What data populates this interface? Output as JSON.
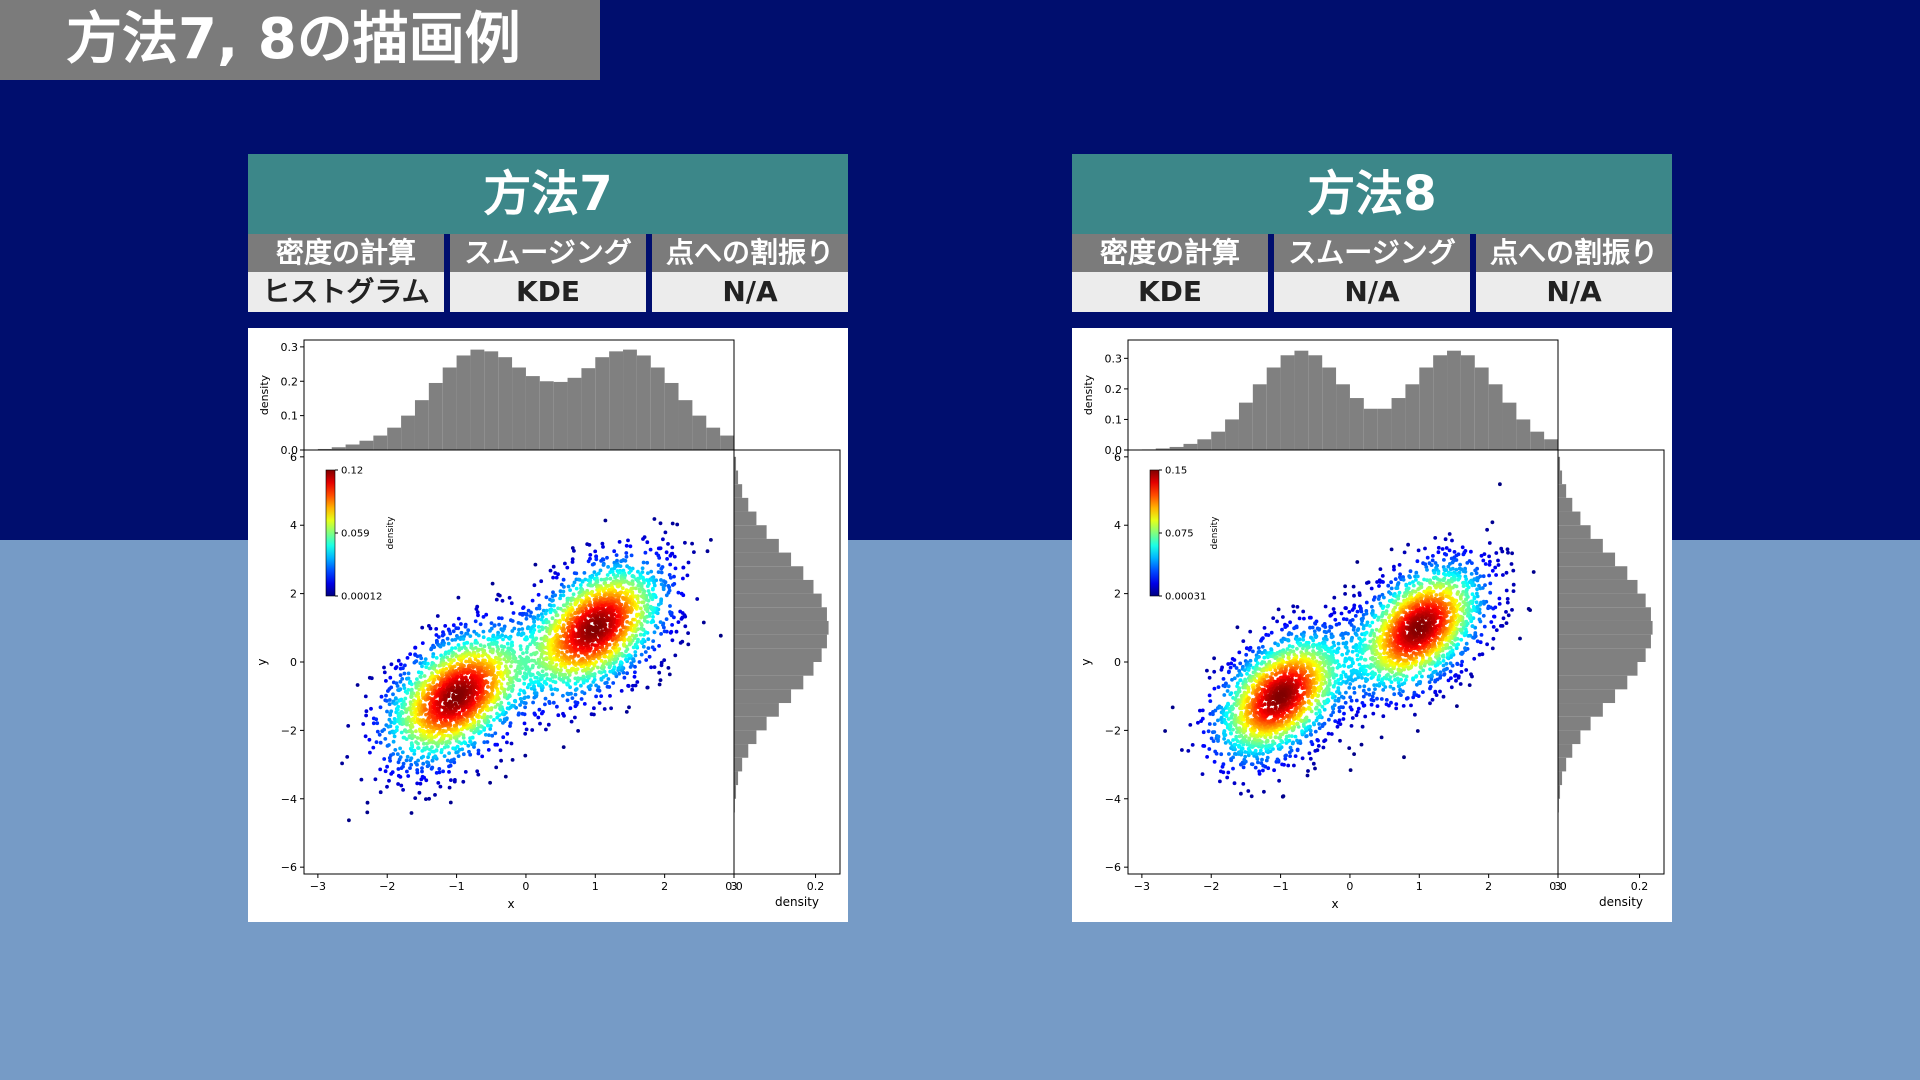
{
  "page_title": "方法7, 8の描画例",
  "colors": {
    "background_top": "#000e6e",
    "background_bottom": "#769bc6",
    "panel_header": "#3c8789",
    "category_cell": "#7b7b7b",
    "value_cell": "#ececec",
    "histogram": "#808080"
  },
  "panels": [
    {
      "title": "方法7",
      "categories": [
        "密度の計算",
        "スムージング",
        "点への割振り"
      ],
      "values": [
        "ヒストグラム",
        "KDE",
        "N/A"
      ],
      "chart_data": {
        "type": "scatter",
        "title": "",
        "xlabel": "x",
        "ylabel": "y",
        "xlim": [
          -3.2,
          3.0
        ],
        "ylim": [
          -6.2,
          6.2
        ],
        "x_ticks": [
          "−3",
          "−2",
          "−1",
          "0",
          "1",
          "2",
          "3"
        ],
        "y_ticks": [
          "−6",
          "−4",
          "−2",
          "0",
          "2",
          "4",
          "6"
        ],
        "colorbar": {
          "label": "density",
          "max": "0.12",
          "mid": "0.059",
          "min": "0.00012",
          "colormap": "jet"
        },
        "clusters": [
          {
            "center": [
              -1,
              -1
            ],
            "sd": [
              0.55,
              1.05
            ],
            "rho": 0.45
          },
          {
            "center": [
              1,
              1
            ],
            "sd": [
              0.55,
              1.05
            ],
            "rho": 0.45
          }
        ],
        "marginal_x": {
          "ylabel": "density",
          "y_ticks": [
            "0.0",
            "0.1",
            "0.2",
            "0.3"
          ],
          "ylim": [
            0,
            0.32
          ],
          "bin_start": -3.0,
          "bin_width": 0.2,
          "values": [
            0.003,
            0.008,
            0.016,
            0.027,
            0.042,
            0.065,
            0.1,
            0.145,
            0.195,
            0.24,
            0.275,
            0.292,
            0.287,
            0.27,
            0.24,
            0.215,
            0.2,
            0.198,
            0.21,
            0.238,
            0.27,
            0.287,
            0.292,
            0.275,
            0.24,
            0.195,
            0.145,
            0.1,
            0.065,
            0.042
          ]
        },
        "marginal_y": {
          "xlabel": "density",
          "x_ticks": [
            "0.0",
            "0.2"
          ],
          "xlim": [
            0,
            0.26
          ],
          "bin_start": -6.0,
          "bin_width": 0.4,
          "values": [
            0,
            0,
            0,
            0,
            0.002,
            0.005,
            0.01,
            0.02,
            0.035,
            0.055,
            0.08,
            0.11,
            0.14,
            0.17,
            0.195,
            0.215,
            0.228,
            0.232,
            0.228,
            0.215,
            0.195,
            0.17,
            0.14,
            0.11,
            0.08,
            0.055,
            0.035,
            0.02,
            0.01,
            0.005,
            0
          ]
        }
      }
    },
    {
      "title": "方法8",
      "categories": [
        "密度の計算",
        "スムージング",
        "点への割振り"
      ],
      "values": [
        "KDE",
        "N/A",
        "N/A"
      ],
      "chart_data": {
        "type": "scatter",
        "title": "",
        "xlabel": "x",
        "ylabel": "y",
        "xlim": [
          -3.2,
          3.0
        ],
        "ylim": [
          -6.2,
          6.2
        ],
        "x_ticks": [
          "−3",
          "−2",
          "−1",
          "0",
          "1",
          "2",
          "3"
        ],
        "y_ticks": [
          "−6",
          "−4",
          "−2",
          "0",
          "2",
          "4",
          "6"
        ],
        "colorbar": {
          "label": "density",
          "max": "0.15",
          "mid": "0.075",
          "min": "0.00031",
          "colormap": "jet"
        },
        "clusters": [
          {
            "center": [
              -1,
              -1
            ],
            "sd": [
              0.5,
              1.0
            ],
            "rho": 0.45
          },
          {
            "center": [
              1,
              1
            ],
            "sd": [
              0.5,
              1.0
            ],
            "rho": 0.45
          }
        ],
        "marginal_x": {
          "ylabel": "density",
          "y_ticks": [
            "0.0",
            "0.1",
            "0.2",
            "0.3"
          ],
          "ylim": [
            0,
            0.36
          ],
          "bin_start": -3.0,
          "bin_width": 0.2,
          "values": [
            0.002,
            0.005,
            0.01,
            0.02,
            0.035,
            0.06,
            0.1,
            0.155,
            0.215,
            0.27,
            0.31,
            0.325,
            0.31,
            0.27,
            0.215,
            0.17,
            0.135,
            0.135,
            0.17,
            0.215,
            0.27,
            0.31,
            0.325,
            0.31,
            0.27,
            0.215,
            0.155,
            0.1,
            0.06,
            0.035
          ]
        },
        "marginal_y": {
          "xlabel": "density",
          "x_ticks": [
            "0.0",
            "0.2"
          ],
          "xlim": [
            0,
            0.26
          ],
          "bin_start": -6.0,
          "bin_width": 0.4,
          "values": [
            0,
            0,
            0,
            0,
            0.002,
            0.005,
            0.01,
            0.02,
            0.035,
            0.055,
            0.08,
            0.11,
            0.14,
            0.17,
            0.195,
            0.215,
            0.228,
            0.232,
            0.228,
            0.215,
            0.195,
            0.17,
            0.14,
            0.11,
            0.08,
            0.055,
            0.035,
            0.02,
            0.01,
            0.005,
            0
          ]
        }
      }
    }
  ]
}
